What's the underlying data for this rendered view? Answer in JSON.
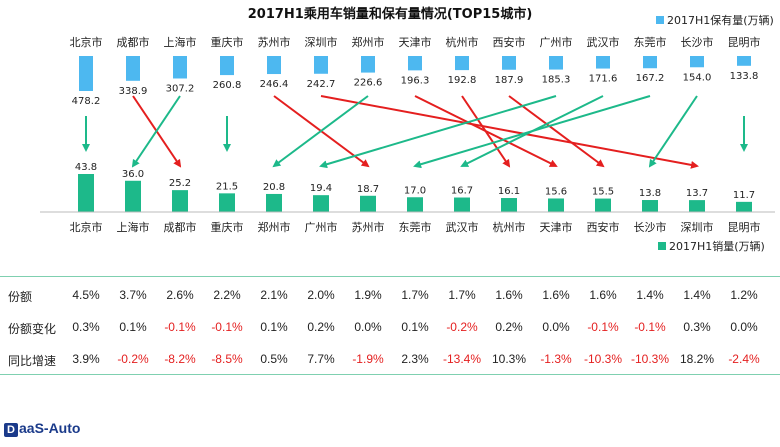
{
  "chart_data": {
    "type": "bar",
    "title": "2017H1乘用车销量和保有量情况(TOP15城市)",
    "colors": {
      "stock": "#4db8f0",
      "sales": "#1db98a",
      "arrow_green": "#1db98a",
      "arrow_red": "#e41f1f"
    },
    "top": {
      "legend": "2017H1保有量(万辆)",
      "categories": [
        "北京市",
        "成都市",
        "上海市",
        "重庆市",
        "苏州市",
        "深圳市",
        "郑州市",
        "天津市",
        "杭州市",
        "西安市",
        "广州市",
        "武汉市",
        "东莞市",
        "长沙市",
        "昆明市"
      ],
      "values": [
        478.2,
        338.9,
        307.2,
        260.8,
        246.4,
        242.7,
        226.6,
        196.3,
        192.8,
        187.9,
        185.3,
        171.6,
        167.2,
        154.0,
        133.8
      ],
      "value_labels": [
        "478.2",
        "338.9",
        "307.2",
        "260.8",
        "246.4",
        "242.7",
        "226.6",
        "196.3",
        "192.8",
        "187.9",
        "185.3",
        "171.6",
        "167.2",
        "154.0",
        "133.8"
      ]
    },
    "bottom": {
      "legend": "2017H1销量(万辆)",
      "categories": [
        "北京市",
        "上海市",
        "成都市",
        "重庆市",
        "郑州市",
        "广州市",
        "苏州市",
        "东莞市",
        "武汉市",
        "杭州市",
        "天津市",
        "西安市",
        "长沙市",
        "深圳市",
        "昆明市"
      ],
      "values": [
        43.8,
        36.0,
        25.2,
        21.5,
        20.8,
        19.4,
        18.7,
        17.0,
        16.7,
        16.1,
        15.6,
        15.5,
        13.8,
        13.7,
        11.7
      ],
      "value_labels": [
        "43.8",
        "36.0",
        "25.2",
        "21.5",
        "20.8",
        "19.4",
        "18.7",
        "17.0",
        "16.7",
        "16.1",
        "15.6",
        "15.5",
        "13.8",
        "13.7",
        "11.7"
      ]
    },
    "rank_arrows": [
      {
        "from": 0,
        "to": 0,
        "color": "green"
      },
      {
        "from": 1,
        "to": 2,
        "color": "red"
      },
      {
        "from": 2,
        "to": 1,
        "color": "green"
      },
      {
        "from": 3,
        "to": 3,
        "color": "green"
      },
      {
        "from": 4,
        "to": 6,
        "color": "red"
      },
      {
        "from": 5,
        "to": 13,
        "color": "red"
      },
      {
        "from": 6,
        "to": 4,
        "color": "green"
      },
      {
        "from": 7,
        "to": 10,
        "color": "red"
      },
      {
        "from": 8,
        "to": 9,
        "color": "red"
      },
      {
        "from": 9,
        "to": 11,
        "color": "red"
      },
      {
        "from": 10,
        "to": 5,
        "color": "green"
      },
      {
        "from": 11,
        "to": 8,
        "color": "green"
      },
      {
        "from": 12,
        "to": 7,
        "color": "green"
      },
      {
        "from": 13,
        "to": 12,
        "color": "green"
      },
      {
        "from": 14,
        "to": 14,
        "color": "green"
      }
    ]
  },
  "table": {
    "rows": [
      {
        "label": "份额",
        "values": [
          "4.5%",
          "3.7%",
          "2.6%",
          "2.2%",
          "2.1%",
          "2.0%",
          "1.9%",
          "1.7%",
          "1.7%",
          "1.6%",
          "1.6%",
          "1.6%",
          "1.4%",
          "1.4%",
          "1.2%"
        ]
      },
      {
        "label": "份额变化",
        "values": [
          "0.3%",
          "0.1%",
          "-0.1%",
          "-0.1%",
          "0.1%",
          "0.2%",
          "0.0%",
          "0.1%",
          "-0.2%",
          "0.2%",
          "0.0%",
          "-0.1%",
          "-0.1%",
          "0.3%",
          "0.0%"
        ]
      },
      {
        "label": "同比增速",
        "values": [
          "3.9%",
          "-0.2%",
          "-8.2%",
          "-8.5%",
          "0.5%",
          "7.7%",
          "-1.9%",
          "2.3%",
          "-13.4%",
          "10.3%",
          "-1.3%",
          "-10.3%",
          "-10.3%",
          "18.2%",
          "-2.4%"
        ]
      }
    ],
    "negative_color": "#e41f1f",
    "positive_color": "#222222"
  },
  "logo": {
    "mark": "D",
    "text": "aaS-Auto"
  }
}
